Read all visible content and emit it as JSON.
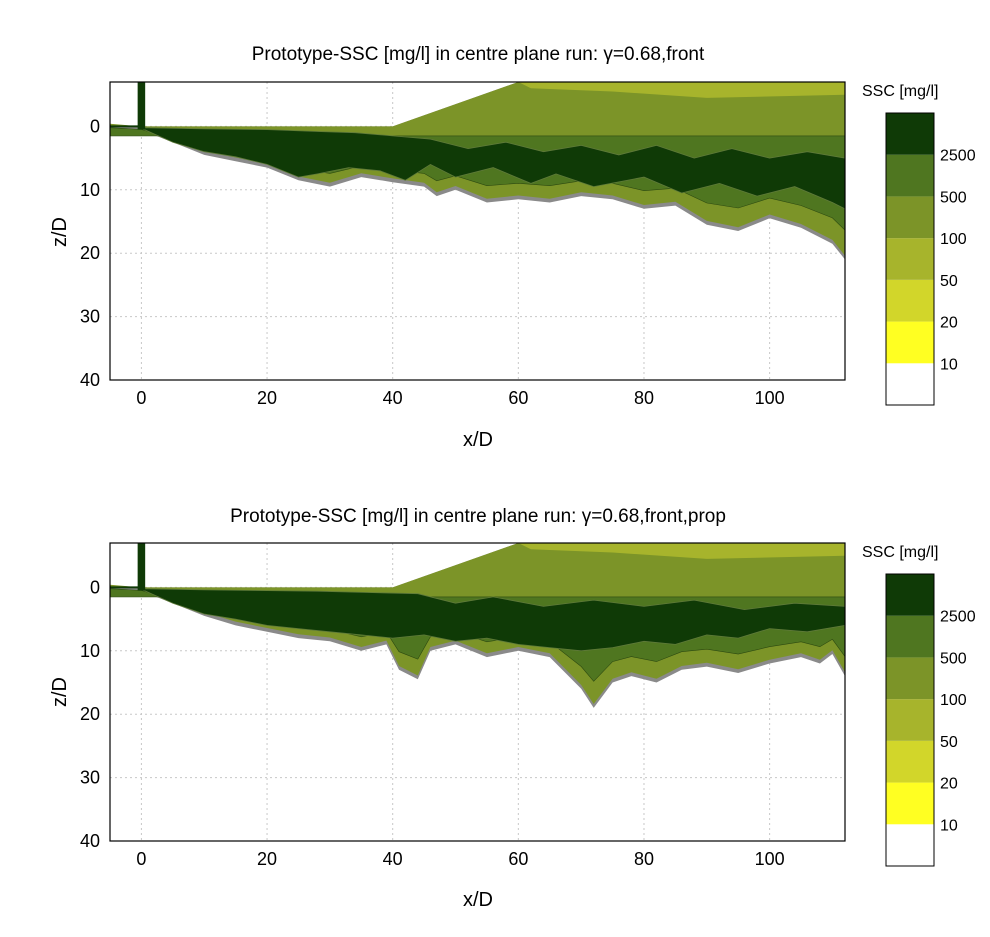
{
  "chart_data": [
    {
      "type": "contour",
      "title": "Prototype-SSC [mg/l] in centre plane run: γ=0.68,front",
      "xlabel": "x/D",
      "ylabel": "z/D",
      "xlim": [
        -5,
        112
      ],
      "ylim": [
        40,
        -7
      ],
      "xticks": [
        0,
        20,
        40,
        60,
        80,
        100
      ],
      "yticks": [
        0,
        10,
        20,
        30,
        40
      ],
      "grid": true,
      "colorbar": {
        "title": "SSC [mg/l]",
        "levels": [
          {
            "label": "",
            "color": "#ffffff"
          },
          {
            "label": "10",
            "color": "#ffff22"
          },
          {
            "label": "20",
            "color": "#d2d62a"
          },
          {
            "label": "50",
            "color": "#a7b42c"
          },
          {
            "label": "100",
            "color": "#7c9428"
          },
          {
            "label": "500",
            "color": "#4f7620"
          },
          {
            "label": "2500",
            "color": "#0f3a06"
          }
        ]
      },
      "plume_outline": [
        [
          -5,
          0.2
        ],
        [
          0,
          0.6
        ],
        [
          5,
          2.5
        ],
        [
          10,
          4.5
        ],
        [
          15,
          5.5
        ],
        [
          20,
          6.5
        ],
        [
          25,
          8.5
        ],
        [
          30,
          9.5
        ],
        [
          35,
          8
        ],
        [
          40,
          8.8
        ],
        [
          45,
          9.5
        ],
        [
          47,
          11
        ],
        [
          50,
          10
        ],
        [
          55,
          12
        ],
        [
          60,
          11.5
        ],
        [
          65,
          12
        ],
        [
          70,
          11
        ],
        [
          75,
          11.5
        ],
        [
          80,
          13
        ],
        [
          85,
          12.5
        ],
        [
          90,
          15.5
        ],
        [
          95,
          16.5
        ],
        [
          100,
          14.5
        ],
        [
          105,
          16
        ],
        [
          110,
          18.5
        ],
        [
          112,
          21
        ]
      ],
      "surface_outline": [
        [
          -5,
          0
        ],
        [
          40,
          0
        ],
        [
          60,
          -7
        ],
        [
          112,
          -7
        ]
      ],
      "core_outline": [
        [
          0,
          0.3
        ],
        [
          5,
          2.5
        ],
        [
          10,
          4
        ],
        [
          15,
          4.8
        ],
        [
          20,
          6
        ],
        [
          25,
          8
        ],
        [
          28,
          7.5
        ],
        [
          33,
          6.5
        ],
        [
          38,
          7
        ],
        [
          42,
          8.5
        ],
        [
          46,
          6
        ],
        [
          50,
          8
        ],
        [
          56,
          6.5
        ],
        [
          62,
          9
        ],
        [
          66,
          7.5
        ],
        [
          72,
          9.5
        ],
        [
          80,
          8
        ],
        [
          86,
          10.5
        ],
        [
          92,
          9
        ],
        [
          98,
          11
        ],
        [
          104,
          9.5
        ],
        [
          110,
          12
        ],
        [
          112,
          13
        ],
        [
          112,
          5
        ],
        [
          106,
          4
        ],
        [
          100,
          5
        ],
        [
          94,
          3.5
        ],
        [
          88,
          5
        ],
        [
          82,
          3
        ],
        [
          76,
          4.5
        ],
        [
          70,
          3
        ],
        [
          64,
          4
        ],
        [
          58,
          2.5
        ],
        [
          52,
          3.5
        ],
        [
          46,
          2
        ],
        [
          40,
          1.5
        ],
        [
          34,
          1
        ],
        [
          28,
          0.8
        ],
        [
          20,
          0.5
        ],
        [
          10,
          0.4
        ],
        [
          0,
          0.2
        ]
      ]
    },
    {
      "type": "contour",
      "title": "Prototype-SSC [mg/l] in centre plane run: γ=0.68,front,prop",
      "xlabel": "x/D",
      "ylabel": "z/D",
      "xlim": [
        -5,
        112
      ],
      "ylim": [
        40,
        -7
      ],
      "xticks": [
        0,
        20,
        40,
        60,
        80,
        100
      ],
      "yticks": [
        0,
        10,
        20,
        30,
        40
      ],
      "grid": true,
      "colorbar": {
        "title": "SSC [mg/l]",
        "levels": [
          {
            "label": "",
            "color": "#ffffff"
          },
          {
            "label": "10",
            "color": "#ffff22"
          },
          {
            "label": "20",
            "color": "#d2d62a"
          },
          {
            "label": "50",
            "color": "#a7b42c"
          },
          {
            "label": "100",
            "color": "#7c9428"
          },
          {
            "label": "500",
            "color": "#4f7620"
          },
          {
            "label": "2500",
            "color": "#0f3a06"
          }
        ]
      },
      "plume_outline": [
        [
          -5,
          0.2
        ],
        [
          0,
          0.6
        ],
        [
          5,
          2.5
        ],
        [
          10,
          4.5
        ],
        [
          15,
          6
        ],
        [
          20,
          7
        ],
        [
          25,
          8
        ],
        [
          30,
          8.5
        ],
        [
          35,
          10
        ],
        [
          39,
          9
        ],
        [
          41,
          13
        ],
        [
          44,
          14.5
        ],
        [
          46,
          10
        ],
        [
          50,
          9
        ],
        [
          55,
          11
        ],
        [
          60,
          10
        ],
        [
          65,
          11
        ],
        [
          70,
          16
        ],
        [
          72,
          19
        ],
        [
          75,
          15
        ],
        [
          78,
          14
        ],
        [
          82,
          15
        ],
        [
          86,
          13
        ],
        [
          90,
          12.5
        ],
        [
          95,
          13.5
        ],
        [
          100,
          12
        ],
        [
          105,
          11
        ],
        [
          108,
          12
        ],
        [
          110,
          10.5
        ],
        [
          112,
          14
        ]
      ],
      "surface_outline": [
        [
          -5,
          0
        ],
        [
          40,
          0
        ],
        [
          60,
          -7
        ],
        [
          112,
          -7
        ]
      ],
      "core_outline": [
        [
          0,
          0.3
        ],
        [
          5,
          2.5
        ],
        [
          10,
          4.2
        ],
        [
          15,
          5
        ],
        [
          20,
          6
        ],
        [
          25,
          6.5
        ],
        [
          30,
          7
        ],
        [
          35,
          7.5
        ],
        [
          40,
          8
        ],
        [
          45,
          7.5
        ],
        [
          50,
          8.5
        ],
        [
          55,
          8
        ],
        [
          60,
          9
        ],
        [
          65,
          9.5
        ],
        [
          70,
          10
        ],
        [
          75,
          9.5
        ],
        [
          80,
          8.5
        ],
        [
          85,
          9
        ],
        [
          90,
          7.5
        ],
        [
          95,
          8
        ],
        [
          100,
          6.5
        ],
        [
          106,
          7
        ],
        [
          112,
          6
        ],
        [
          112,
          3
        ],
        [
          104,
          2.5
        ],
        [
          96,
          3.5
        ],
        [
          88,
          2
        ],
        [
          80,
          3
        ],
        [
          72,
          2
        ],
        [
          64,
          3
        ],
        [
          56,
          1.5
        ],
        [
          50,
          2.5
        ],
        [
          44,
          1
        ],
        [
          36,
          0.8
        ],
        [
          28,
          0.6
        ],
        [
          20,
          0.5
        ],
        [
          10,
          0.4
        ],
        [
          0,
          0.2
        ]
      ]
    }
  ]
}
